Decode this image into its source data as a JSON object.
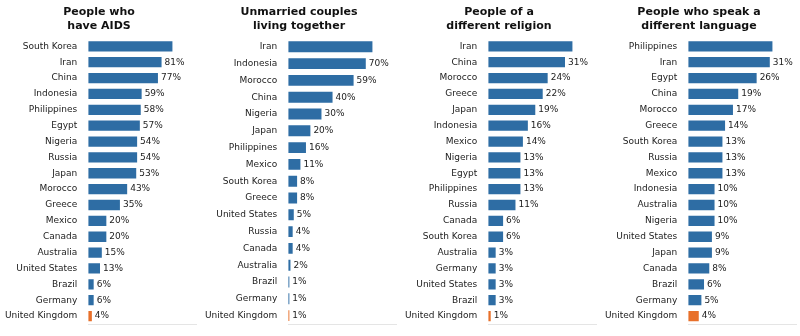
{
  "chart_data": [
    {
      "type": "bar",
      "orientation": "horizontal",
      "title": "People who\nhave AIDS",
      "categories": [
        "South Korea",
        "Iran",
        "China",
        "Indonesia",
        "Philippines",
        "Egypt",
        "Nigeria",
        "Russia",
        "Japan",
        "Morocco",
        "Greece",
        "Mexico",
        "Canada",
        "Australia",
        "United States",
        "Brazil",
        "Germany",
        "United Kingdom"
      ],
      "values": [
        93,
        81,
        77,
        59,
        58,
        57,
        54,
        54,
        53,
        43,
        35,
        20,
        20,
        15,
        13,
        6,
        6,
        4
      ],
      "value_labels": [
        null,
        "81%",
        "77%",
        "59%",
        "58%",
        "57%",
        "54%",
        "54%",
        "53%",
        "43%",
        "35%",
        "20%",
        "20%",
        "15%",
        "13%",
        "6%",
        "6%",
        "4%"
      ],
      "colors": [
        "#2E6DA4",
        "#2E6DA4",
        "#2E6DA4",
        "#2E6DA4",
        "#2E6DA4",
        "#2E6DA4",
        "#2E6DA4",
        "#2E6DA4",
        "#2E6DA4",
        "#2E6DA4",
        "#2E6DA4",
        "#2E6DA4",
        "#2E6DA4",
        "#2E6DA4",
        "#2E6DA4",
        "#2E6DA4",
        "#2E6DA4",
        "#E8702A"
      ],
      "xlim": [
        0,
        119.04
      ],
      "data_labels": true,
      "tick_labels": "y",
      "grid": false
    },
    {
      "type": "bar",
      "orientation": "horizontal",
      "title": "Unmarried couples\nliving together",
      "categories": [
        "Iran",
        "Indonesia",
        "Morocco",
        "China",
        "Nigeria",
        "Japan",
        "Philippines",
        "Mexico",
        "South Korea",
        "Greece",
        "United States",
        "Russia",
        "Canada",
        "Australia",
        "Brazil",
        "Germany",
        "United Kingdom"
      ],
      "values": [
        76,
        70,
        59,
        40,
        30,
        20,
        16,
        11,
        8,
        8,
        5,
        4,
        4,
        2,
        1,
        1,
        1
      ],
      "value_labels": [
        null,
        "70%",
        "59%",
        "40%",
        "30%",
        "20%",
        "16%",
        "11%",
        "8%",
        "8%",
        "5%",
        "4%",
        "4%",
        "2%",
        "1%",
        "1%",
        "1%"
      ],
      "colors": [
        "#2E6DA4",
        "#2E6DA4",
        "#2E6DA4",
        "#2E6DA4",
        "#2E6DA4",
        "#2E6DA4",
        "#2E6DA4",
        "#2E6DA4",
        "#2E6DA4",
        "#2E6DA4",
        "#2E6DA4",
        "#2E6DA4",
        "#2E6DA4",
        "#2E6DA4",
        "#2E6DA4",
        "#2E6DA4",
        "#E8702A"
      ],
      "xlim": [
        0,
        97.28
      ],
      "data_labels": true,
      "tick_labels": "y",
      "grid": false
    },
    {
      "type": "bar",
      "orientation": "horizontal",
      "title": "People of a\ndifferent religion",
      "categories": [
        "Iran",
        "China",
        "Morocco",
        "Greece",
        "Japan",
        "Indonesia",
        "Mexico",
        "Nigeria",
        "Egypt",
        "Philippines",
        "Russia",
        "Canada",
        "South Korea",
        "Australia",
        "Germany",
        "United States",
        "Brazil",
        "United Kingdom"
      ],
      "values": [
        34,
        31,
        24,
        22,
        19,
        16,
        14,
        13,
        13,
        13,
        11,
        6,
        6,
        3,
        3,
        3,
        3,
        1
      ],
      "value_labels": [
        null,
        "31%",
        "24%",
        "22%",
        "19%",
        "16%",
        "14%",
        "13%",
        "13%",
        "13%",
        "11%",
        "6%",
        "6%",
        "3%",
        "3%",
        "3%",
        "3%",
        "1%"
      ],
      "colors": [
        "#2E6DA4",
        "#2E6DA4",
        "#2E6DA4",
        "#2E6DA4",
        "#2E6DA4",
        "#2E6DA4",
        "#2E6DA4",
        "#2E6DA4",
        "#2E6DA4",
        "#2E6DA4",
        "#2E6DA4",
        "#2E6DA4",
        "#2E6DA4",
        "#2E6DA4",
        "#2E6DA4",
        "#2E6DA4",
        "#2E6DA4",
        "#E8702A"
      ],
      "xlim": [
        0,
        43.52
      ],
      "data_labels": true,
      "tick_labels": "y",
      "grid": false
    },
    {
      "type": "bar",
      "orientation": "horizontal",
      "title": "People who speak a\ndifferent language",
      "categories": [
        "Philippines",
        "Iran",
        "Egypt",
        "China",
        "Morocco",
        "Greece",
        "South Korea",
        "Russia",
        "Mexico",
        "Indonesia",
        "Australia",
        "Nigeria",
        "United States",
        "Japan",
        "Canada",
        "Brazil",
        "Germany",
        "United Kingdom"
      ],
      "values": [
        32,
        31,
        26,
        19,
        17,
        14,
        13,
        13,
        13,
        10,
        10,
        10,
        9,
        9,
        8,
        6,
        5,
        4
      ],
      "value_labels": [
        null,
        "31%",
        "26%",
        "19%",
        "17%",
        "14%",
        "13%",
        "13%",
        "13%",
        "10%",
        "10%",
        "10%",
        "9%",
        "9%",
        "8%",
        "6%",
        "5%",
        "4%"
      ],
      "colors": [
        "#2E6DA4",
        "#2E6DA4",
        "#2E6DA4",
        "#2E6DA4",
        "#2E6DA4",
        "#2E6DA4",
        "#2E6DA4",
        "#2E6DA4",
        "#2E6DA4",
        "#2E6DA4",
        "#2E6DA4",
        "#2E6DA4",
        "#2E6DA4",
        "#2E6DA4",
        "#2E6DA4",
        "#2E6DA4",
        "#2E6DA4",
        "#E8702A"
      ],
      "xlim": [
        0,
        40.96
      ],
      "data_labels": true,
      "tick_labels": "y",
      "grid": false
    }
  ]
}
